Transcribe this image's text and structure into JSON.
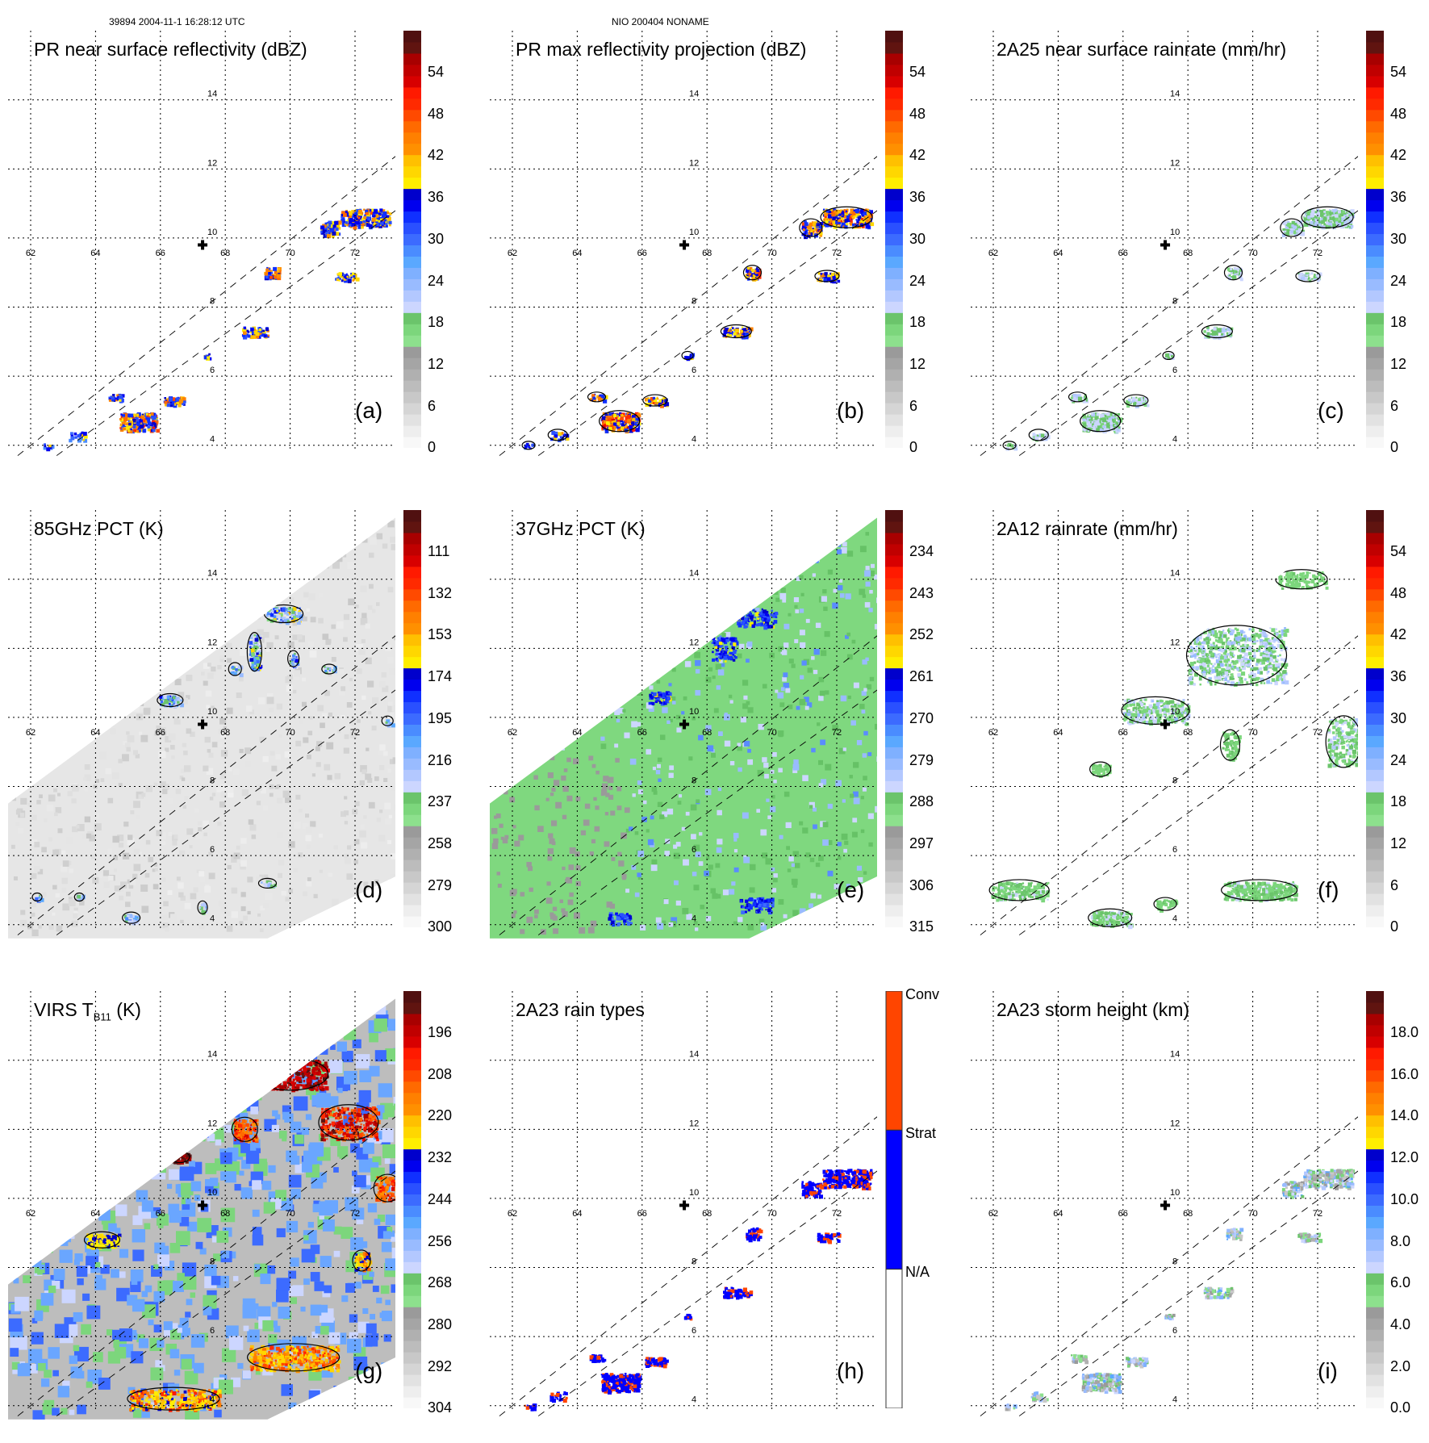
{
  "header": {
    "left": "39894 2004-11-1 16:28:12 UTC",
    "center": "NIO 200404 NONAME"
  },
  "chart_data": [
    {
      "type": "heatmap",
      "id": "a",
      "title": "PR near surface reflectivity (dBZ)",
      "letter": "(a)",
      "colorbar": {
        "ticks": [
          "54",
          "48",
          "42",
          "36",
          "30",
          "24",
          "18",
          "12",
          "6",
          "0"
        ],
        "range": [
          0,
          60
        ],
        "units": "dBZ"
      },
      "lon_ticks": [
        "62",
        "64",
        "66",
        "68",
        "70",
        "72"
      ],
      "lat_ticks": [
        "14",
        "12",
        "10",
        "8",
        "6",
        "4"
      ],
      "swath": "PR narrow swath",
      "storm_center": {
        "lon": 67.3,
        "lat": 9.8
      }
    },
    {
      "type": "heatmap",
      "id": "b",
      "title": "PR max reflectivity projection (dBZ)",
      "letter": "(b)",
      "colorbar": {
        "ticks": [
          "54",
          "48",
          "42",
          "36",
          "30",
          "24",
          "18",
          "12",
          "6",
          "0"
        ],
        "range": [
          0,
          60
        ],
        "units": "dBZ"
      },
      "lon_ticks": [
        "62",
        "64",
        "66",
        "68",
        "70",
        "72"
      ],
      "lat_ticks": [
        "14",
        "12",
        "10",
        "8",
        "6",
        "4"
      ],
      "swath": "PR narrow swath",
      "storm_center": {
        "lon": 67.3,
        "lat": 9.8
      }
    },
    {
      "type": "heatmap",
      "id": "c",
      "title": "2A25 near surface rainrate (mm/hr)",
      "letter": "(c)",
      "colorbar": {
        "ticks": [
          "54",
          "48",
          "42",
          "36",
          "30",
          "24",
          "18",
          "12",
          "6",
          "0"
        ],
        "range": [
          0,
          60
        ],
        "units": "mm/hr"
      },
      "lon_ticks": [
        "62",
        "64",
        "66",
        "68",
        "70",
        "72"
      ],
      "lat_ticks": [
        "14",
        "12",
        "10",
        "8",
        "6",
        "4"
      ],
      "swath": "PR narrow swath",
      "storm_center": {
        "lon": 67.3,
        "lat": 9.8
      }
    },
    {
      "type": "heatmap",
      "id": "d",
      "title": "85GHz PCT (K)",
      "letter": "(d)",
      "colorbar": {
        "ticks": [
          "111",
          "132",
          "153",
          "174",
          "195",
          "216",
          "237",
          "258",
          "279",
          "300"
        ],
        "range": [
          90,
          300
        ],
        "units": "K"
      },
      "lon_ticks": [
        "62",
        "64",
        "66",
        "68",
        "70",
        "72"
      ],
      "lat_ticks": [
        "14",
        "12",
        "10",
        "8",
        "6",
        "4"
      ],
      "swath": "TMI wide swath",
      "storm_center": {
        "lon": 67.3,
        "lat": 9.8
      }
    },
    {
      "type": "heatmap",
      "id": "e",
      "title": "37GHz PCT (K)",
      "letter": "(e)",
      "colorbar": {
        "ticks": [
          "234",
          "243",
          "252",
          "261",
          "270",
          "279",
          "288",
          "297",
          "306",
          "315"
        ],
        "range": [
          225,
          315
        ],
        "units": "K"
      },
      "lon_ticks": [
        "62",
        "64",
        "66",
        "68",
        "70",
        "72"
      ],
      "lat_ticks": [
        "14",
        "12",
        "10",
        "8",
        "6",
        "4"
      ],
      "swath": "TMI wide swath",
      "storm_center": {
        "lon": 67.3,
        "lat": 9.8
      }
    },
    {
      "type": "heatmap",
      "id": "f",
      "title": "2A12 rainrate (mm/hr)",
      "letter": "(f)",
      "colorbar": {
        "ticks": [
          "54",
          "48",
          "42",
          "36",
          "30",
          "24",
          "18",
          "12",
          "6",
          "0"
        ],
        "range": [
          0,
          60
        ],
        "units": "mm/hr"
      },
      "lon_ticks": [
        "62",
        "64",
        "66",
        "68",
        "70",
        "72"
      ],
      "lat_ticks": [
        "14",
        "12",
        "10",
        "8",
        "6",
        "4"
      ],
      "swath": "TMI wide swath",
      "storm_center": {
        "lon": 67.3,
        "lat": 9.8
      }
    },
    {
      "type": "heatmap",
      "id": "g",
      "title": "VIRS T",
      "title_sub": "B11",
      "title_suffix": " (K)",
      "letter": "(g)",
      "colorbar": {
        "ticks": [
          "196",
          "208",
          "220",
          "232",
          "244",
          "256",
          "268",
          "280",
          "292",
          "304"
        ],
        "range": [
          184,
          304
        ],
        "units": "K"
      },
      "lon_ticks": [
        "62",
        "64",
        "66",
        "68",
        "70",
        "72"
      ],
      "lat_ticks": [
        "14",
        "12",
        "10",
        "8",
        "6",
        "4"
      ],
      "swath": "VIRS wide swath",
      "storm_center": {
        "lon": 67.3,
        "lat": 9.8
      }
    },
    {
      "type": "heatmap",
      "id": "h",
      "title": "2A23 rain types",
      "letter": "(h)",
      "colorbar": {
        "categories": [
          "Conv",
          "Strat",
          "N/A"
        ],
        "colors": [
          "#ff4500",
          "#0000ff",
          "#ffffff"
        ]
      },
      "lon_ticks": [
        "62",
        "64",
        "66",
        "68",
        "70",
        "72"
      ],
      "lat_ticks": [
        "14",
        "12",
        "10",
        "8",
        "6",
        "4"
      ],
      "swath": "PR narrow swath",
      "storm_center": {
        "lon": 67.3,
        "lat": 9.8
      }
    },
    {
      "type": "heatmap",
      "id": "i",
      "title": "2A23 storm height (km)",
      "letter": "(i)",
      "colorbar": {
        "ticks": [
          "18.0",
          "16.0",
          "14.0",
          "12.0",
          "10.0",
          "8.0",
          "6.0",
          "4.0",
          "2.0",
          "0.0"
        ],
        "range": [
          0,
          20
        ],
        "units": "km"
      },
      "lon_ticks": [
        "62",
        "64",
        "66",
        "68",
        "70",
        "72"
      ],
      "lat_ticks": [
        "14",
        "12",
        "10",
        "8",
        "6",
        "4"
      ],
      "swath": "PR narrow swath",
      "storm_center": {
        "lon": 67.3,
        "lat": 9.8
      }
    }
  ],
  "palette": {
    "continuous": [
      "#f8f8f8",
      "#eeeeee",
      "#e2e2e2",
      "#d5d5d5",
      "#c8c8c8",
      "#bcbcbc",
      "#b0b0b0",
      "#a5a5a5",
      "#9a9a9a",
      "#8de08d",
      "#7cd67c",
      "#6bc46b",
      "#ccd6ff",
      "#b3c8ff",
      "#99bbff",
      "#7fb0ff",
      "#5aa8ff",
      "#4a8cff",
      "#3c6bff",
      "#2a50ff",
      "#1030ff",
      "#0000ee",
      "#0000cc",
      "#ffee00",
      "#ffd700",
      "#ffc000",
      "#ff9000",
      "#ff8000",
      "#ff6a00",
      "#ff4a00",
      "#ff2a00",
      "#ff1a00",
      "#d80000",
      "#c00000",
      "#a80000",
      "#601410",
      "#501010"
    ]
  }
}
